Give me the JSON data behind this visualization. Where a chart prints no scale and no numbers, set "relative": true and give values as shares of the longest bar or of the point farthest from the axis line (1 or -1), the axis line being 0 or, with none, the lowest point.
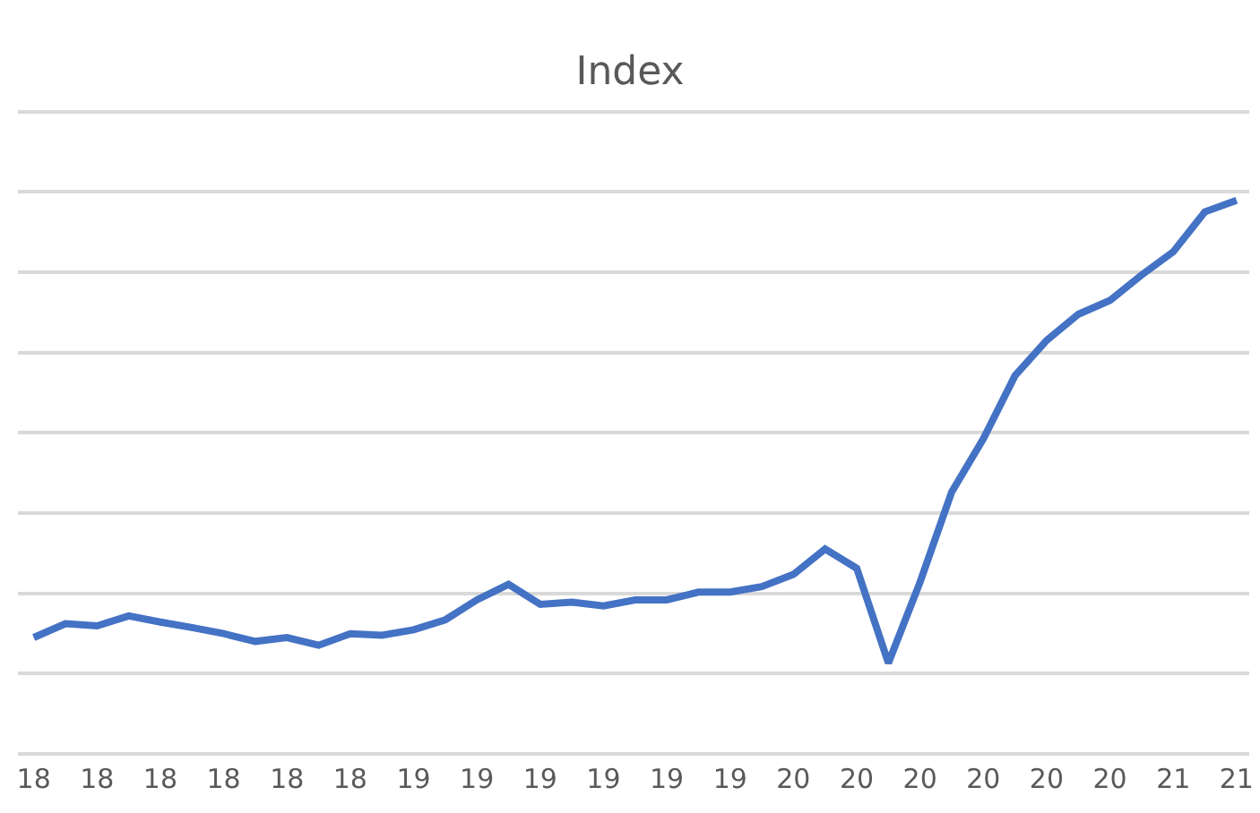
{
  "chart_data": {
    "type": "line",
    "title": "Index",
    "relative": true,
    "grid": "y",
    "categories": [
      "18",
      null,
      "18",
      null,
      "18",
      null,
      "18",
      null,
      "18",
      null,
      "18",
      null,
      "19",
      null,
      "19",
      null,
      "19",
      null,
      "19",
      null,
      "19",
      null,
      "19",
      null,
      "20",
      null,
      "20",
      null,
      "20",
      null,
      "20",
      null,
      "20",
      null,
      "20",
      null,
      "21",
      null,
      "21"
    ],
    "series": [
      {
        "color": "#4472c4",
        "values": [
          0.21,
          0.235,
          0.231,
          0.249,
          0.238,
          0.228,
          0.217,
          0.203,
          0.21,
          0.196,
          0.217,
          0.214,
          0.224,
          0.242,
          0.278,
          0.306,
          0.27,
          0.274,
          0.267,
          0.278,
          0.278,
          0.292,
          0.292,
          0.302,
          0.324,
          0.37,
          0.335,
          0.164,
          0.31,
          0.473,
          0.569,
          0.683,
          0.747,
          0.794,
          0.819,
          0.865,
          0.907,
          0.979,
          1
        ]
      }
    ]
  }
}
